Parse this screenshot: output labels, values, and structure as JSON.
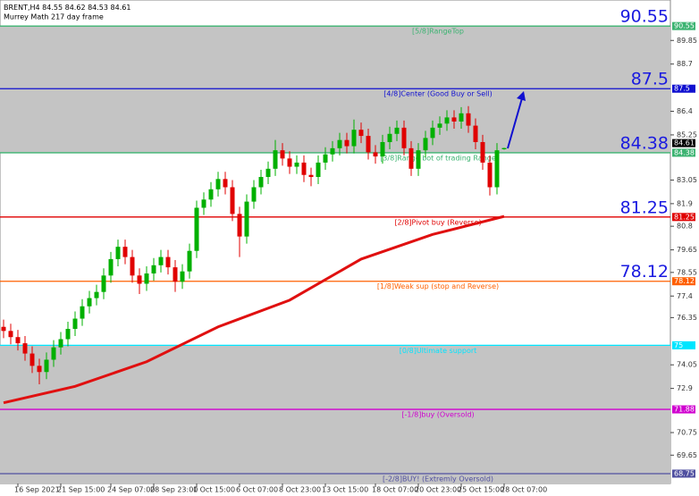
{
  "chart_data": {
    "type": "candlestick",
    "symbol": "BRENT,H4",
    "subtitle": "Murrey Math 217 day frame",
    "ylim": [
      68.27,
      91.82
    ],
    "yticks": [
      89.85,
      88.7,
      86.4,
      85.25,
      83.05,
      81.9,
      80.8,
      79.65,
      78.55,
      77.4,
      76.35,
      74.05,
      72.9,
      70.75,
      69.65
    ],
    "categories": [
      null,
      null,
      "16 Sep 2021",
      null,
      null,
      null,
      null,
      null,
      "21 Sep 15:00",
      null,
      null,
      null,
      null,
      null,
      null,
      "24 Sep 07:00",
      null,
      null,
      null,
      null,
      null,
      "28 Sep 23:00",
      null,
      null,
      null,
      null,
      null,
      "1 Oct 15:00",
      null,
      null,
      null,
      null,
      null,
      "6 Oct 07:00",
      null,
      null,
      null,
      null,
      null,
      "8 Oct 23:00",
      null,
      null,
      null,
      null,
      null,
      "13 Oct 15:00",
      null,
      null,
      null,
      null,
      null,
      null,
      "18 Oct 07:00",
      null,
      null,
      null,
      null,
      null,
      "20 Oct 23:00",
      null,
      null,
      null,
      null,
      null,
      "25 Oct 15:00",
      null,
      null,
      null,
      null,
      null,
      "28 Oct 07:00"
    ],
    "open": [
      75.9,
      75.7,
      75.4,
      75.1,
      74.6,
      74.0,
      73.7,
      74.3,
      74.9,
      75.3,
      75.8,
      76.3,
      76.9,
      77.3,
      77.6,
      78.4,
      79.2,
      79.8,
      79.3,
      78.4,
      78.0,
      78.5,
      78.9,
      79.3,
      78.8,
      78.1,
      78.6,
      79.6,
      81.7,
      82.1,
      82.6,
      83.1,
      82.7,
      81.4,
      80.3,
      82.0,
      82.7,
      83.2,
      83.6,
      84.5,
      84.1,
      83.7,
      83.9,
      83.3,
      83.2,
      83.9,
      84.3,
      84.6,
      85.0,
      84.7,
      85.5,
      85.2,
      84.4,
      84.2,
      84.9,
      85.3,
      85.6,
      84.6,
      83.6,
      84.5,
      85.1,
      85.6,
      85.8,
      86.1,
      85.9,
      86.3,
      85.7,
      84.9,
      83.9,
      82.7,
      84.55
    ],
    "high": [
      76.25,
      76.05,
      75.75,
      75.45,
      74.95,
      74.35,
      74.65,
      75.25,
      75.65,
      76.15,
      76.65,
      77.25,
      77.65,
      77.95,
      78.75,
      79.55,
      80.15,
      80.15,
      79.65,
      78.75,
      78.85,
      79.25,
      79.65,
      79.65,
      79.15,
      78.95,
      79.95,
      82.05,
      82.45,
      82.95,
      83.45,
      83.45,
      83.05,
      81.75,
      82.35,
      83.05,
      83.55,
      83.95,
      85.0,
      84.85,
      84.45,
      84.25,
      84.25,
      83.65,
      84.25,
      84.65,
      84.95,
      85.35,
      85.35,
      86.0,
      85.85,
      85.55,
      84.75,
      85.25,
      85.65,
      85.95,
      85.95,
      84.95,
      84.85,
      85.45,
      85.95,
      86.15,
      86.45,
      86.45,
      86.6,
      86.65,
      86.05,
      85.25,
      84.25,
      84.85,
      84.62
    ],
    "low": [
      75.35,
      75.05,
      74.75,
      74.25,
      73.65,
      73.1,
      73.35,
      73.95,
      74.55,
      74.95,
      75.45,
      75.95,
      76.55,
      76.95,
      77.25,
      78.05,
      78.85,
      78.95,
      78.05,
      77.5,
      77.65,
      78.15,
      78.55,
      78.45,
      77.6,
      77.75,
      78.25,
      79.25,
      81.35,
      81.75,
      82.25,
      82.35,
      81.05,
      79.3,
      79.95,
      81.65,
      82.35,
      82.85,
      83.25,
      83.75,
      83.35,
      83.35,
      82.95,
      82.75,
      82.85,
      83.55,
      83.95,
      84.25,
      84.35,
      84.35,
      84.85,
      84.05,
      83.85,
      83.85,
      84.55,
      84.95,
      84.25,
      83.25,
      83.25,
      84.15,
      84.75,
      85.25,
      85.45,
      85.55,
      85.55,
      85.35,
      84.55,
      83.55,
      82.3,
      82.35,
      84.53
    ],
    "close": [
      75.7,
      75.4,
      75.1,
      74.6,
      74.0,
      73.7,
      74.3,
      74.9,
      75.3,
      75.8,
      76.3,
      76.9,
      77.3,
      77.6,
      78.4,
      79.2,
      79.8,
      79.3,
      78.4,
      78.0,
      78.5,
      78.9,
      79.3,
      78.8,
      78.1,
      78.6,
      79.6,
      81.7,
      82.1,
      82.6,
      83.1,
      82.7,
      81.4,
      80.3,
      82.0,
      82.7,
      83.2,
      83.6,
      84.5,
      84.1,
      83.7,
      83.9,
      83.3,
      83.2,
      83.9,
      84.3,
      84.6,
      85.0,
      84.7,
      85.5,
      85.2,
      84.4,
      84.2,
      84.9,
      85.3,
      85.6,
      84.6,
      83.6,
      84.5,
      85.1,
      85.6,
      85.8,
      86.1,
      85.9,
      86.3,
      85.7,
      84.9,
      83.9,
      82.7,
      84.5,
      84.61
    ],
    "up_color": "#00b000",
    "down_color": "#e00000",
    "ma": {
      "color": "#e01010",
      "x": [
        0,
        10,
        20,
        30,
        40,
        50,
        60,
        70
      ],
      "values": [
        72.2,
        73.0,
        74.2,
        75.9,
        77.2,
        79.2,
        80.4,
        81.28
      ]
    },
    "shaded_ranges": [
      [
        84.38,
        90.55
      ],
      [
        68.27,
        75.0
      ]
    ],
    "levels": [
      {
        "value": 90.55,
        "label": "[5/8]RangeTop",
        "color": "#3cb371",
        "big": true
      },
      {
        "value": 87.5,
        "label": "[4/8]Center (Good Buy or Sell)",
        "color": "#1010d0",
        "big": true
      },
      {
        "value": 84.38,
        "label": "[3/8]Range bot of trading Range",
        "color": "#3cb371",
        "big": true
      },
      {
        "value": 81.25,
        "label": "[2/8]Pivot buy (Reverse)",
        "color": "#e00000",
        "big": true
      },
      {
        "value": 78.12,
        "label": "[1/8]Weak sup (stop and Reverse)",
        "color": "#ff6000",
        "big": true
      },
      {
        "value": 75.0,
        "label": "[0/8]Ultimate support",
        "color": "#00e5ff",
        "big": false
      },
      {
        "value": 71.88,
        "label": "[-1/8]buy (Oversold)",
        "color": "#d000d0",
        "big": false
      },
      {
        "value": 68.75,
        "label": "[-2/8]BUY! (Extremly Oversold)",
        "color": "#5050a0",
        "big": false
      }
    ]
  }
}
